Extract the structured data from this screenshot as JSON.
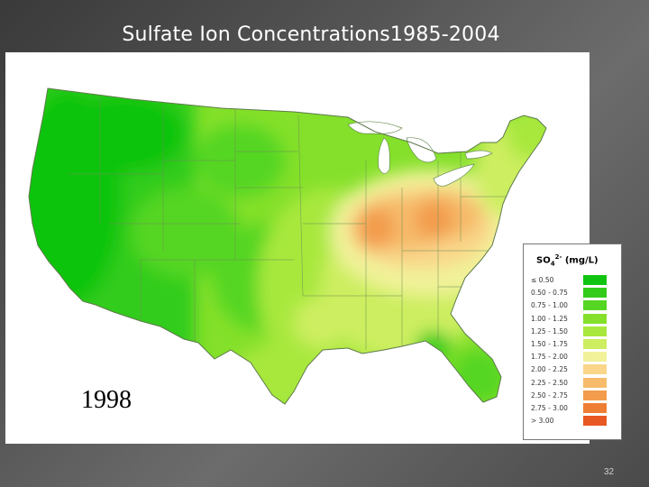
{
  "slide": {
    "title": "Sulfate Ion Concentrations1985-2004",
    "year": "1998",
    "page_number": "32"
  },
  "legend": {
    "title_prefix": "SO",
    "title_sup": "2-",
    "title_sub": "4",
    "title_unit": "(mg/L)",
    "items": [
      {
        "label": "≤ 0.50",
        "color": "#11c411"
      },
      {
        "label": "0.50 - 0.75",
        "color": "#33cc1a"
      },
      {
        "label": "0.75 - 1.00",
        "color": "#55d622"
      },
      {
        "label": "1.00 - 1.25",
        "color": "#84e02a"
      },
      {
        "label": "1.25 - 1.50",
        "color": "#a8e83c"
      },
      {
        "label": "1.50 - 1.75",
        "color": "#cdee60"
      },
      {
        "label": "1.75 - 2.00",
        "color": "#f1f29a"
      },
      {
        "label": "2.00 - 2.25",
        "color": "#f9d68a"
      },
      {
        "label": "2.25 - 2.50",
        "color": "#f6bb6b"
      },
      {
        "label": "2.50 - 2.75",
        "color": "#f39c4d"
      },
      {
        "label": "2.75 - 3.00",
        "color": "#ef7e35"
      },
      {
        "label": "> 3.00",
        "color": "#e85822"
      }
    ]
  }
}
